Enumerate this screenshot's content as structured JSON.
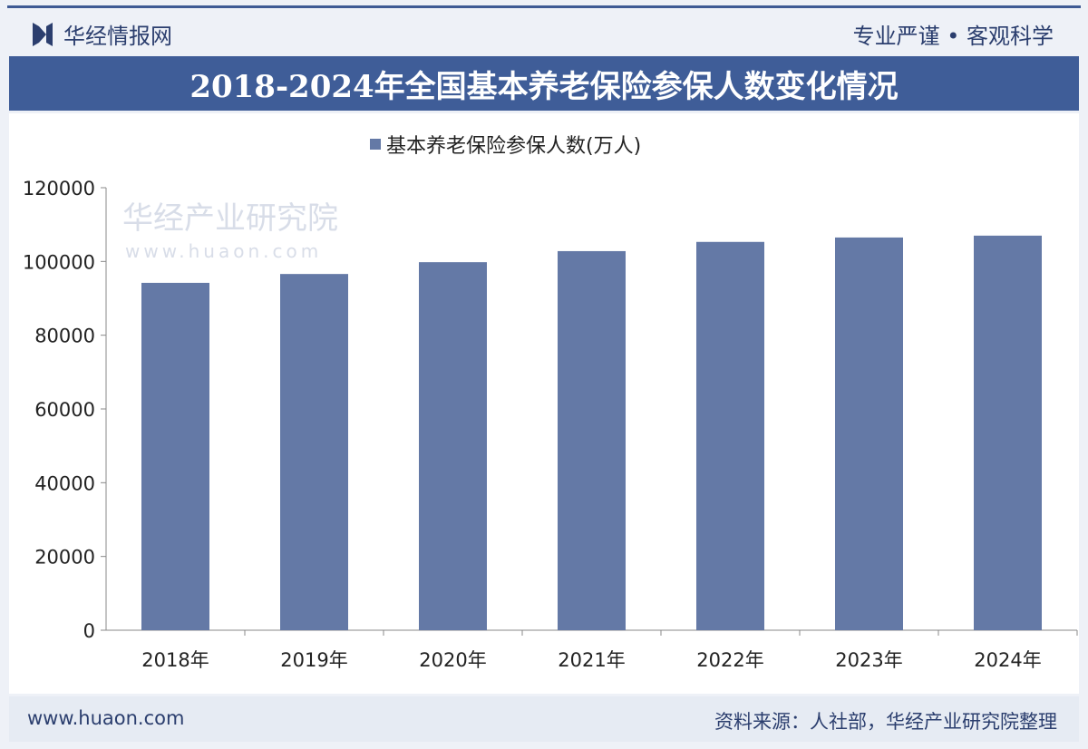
{
  "header": {
    "brand": "华经情报网",
    "slogan": "专业严谨 • 客观科学"
  },
  "footer": {
    "url": "www.huaon.com",
    "source": "资料来源：人社部，华经产业研究院整理"
  },
  "watermark": "华经产业研究院 www.huaon.com",
  "colors": {
    "bar": "#6479a6",
    "title_bg": "#3f5d98",
    "text": "#2b3e6e"
  },
  "chart_data": {
    "type": "bar",
    "title": "2018-2024年全国基本养老保险参保人数变化情况",
    "categories": [
      "2018年",
      "2019年",
      "2020年",
      "2021年",
      "2022年",
      "2023年",
      "2024年"
    ],
    "series": [
      {
        "name": "基本养老保险参保人数(万人)",
        "values": [
          94200,
          96600,
          99800,
          102800,
          105300,
          106500,
          107000
        ]
      }
    ],
    "ylim": [
      0,
      120000
    ],
    "yticks": [
      0,
      20000,
      40000,
      60000,
      80000,
      100000,
      120000
    ],
    "grid": false,
    "legend": "top-center"
  }
}
